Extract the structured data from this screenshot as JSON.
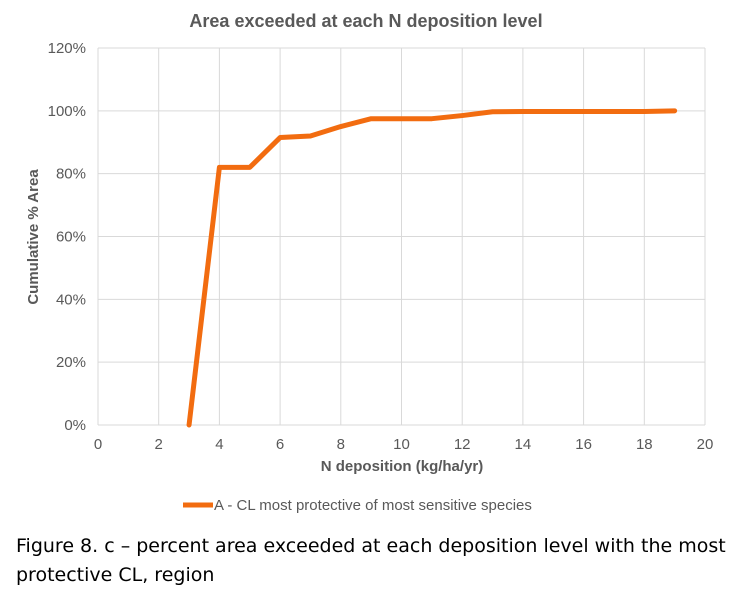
{
  "caption": "Figure 8. c – percent area exceeded at each deposition level with the most protective CL, region",
  "colors": {
    "series": "#f26c10",
    "grid": "#d9d9d9",
    "text": "#595959"
  },
  "chart_data": {
    "type": "line",
    "title": "Area exceeded at each N  deposition level",
    "xlabel": "N deposition (kg/ha/yr)",
    "ylabel": "Cumulative % Area",
    "xlim": [
      0,
      20
    ],
    "ylim": [
      0,
      120
    ],
    "x_ticks": [
      "0",
      "2",
      "4",
      "6",
      "8",
      "10",
      "12",
      "14",
      "16",
      "18",
      "20"
    ],
    "y_ticks": [
      "0%",
      "20%",
      "40%",
      "60%",
      "80%",
      "100%",
      "120%"
    ],
    "grid": true,
    "legend_position": "bottom",
    "series": [
      {
        "name": "A - CL most protective of most sensitive species",
        "x": [
          3,
          4,
          5,
          6,
          7,
          8,
          9,
          10,
          11,
          12,
          13,
          14,
          15,
          16,
          17,
          18,
          19
        ],
        "y": [
          0,
          82,
          82,
          91.5,
          92,
          95,
          97.5,
          97.5,
          97.5,
          98.5,
          99.7,
          99.8,
          99.8,
          99.8,
          99.8,
          99.8,
          100
        ]
      }
    ]
  }
}
